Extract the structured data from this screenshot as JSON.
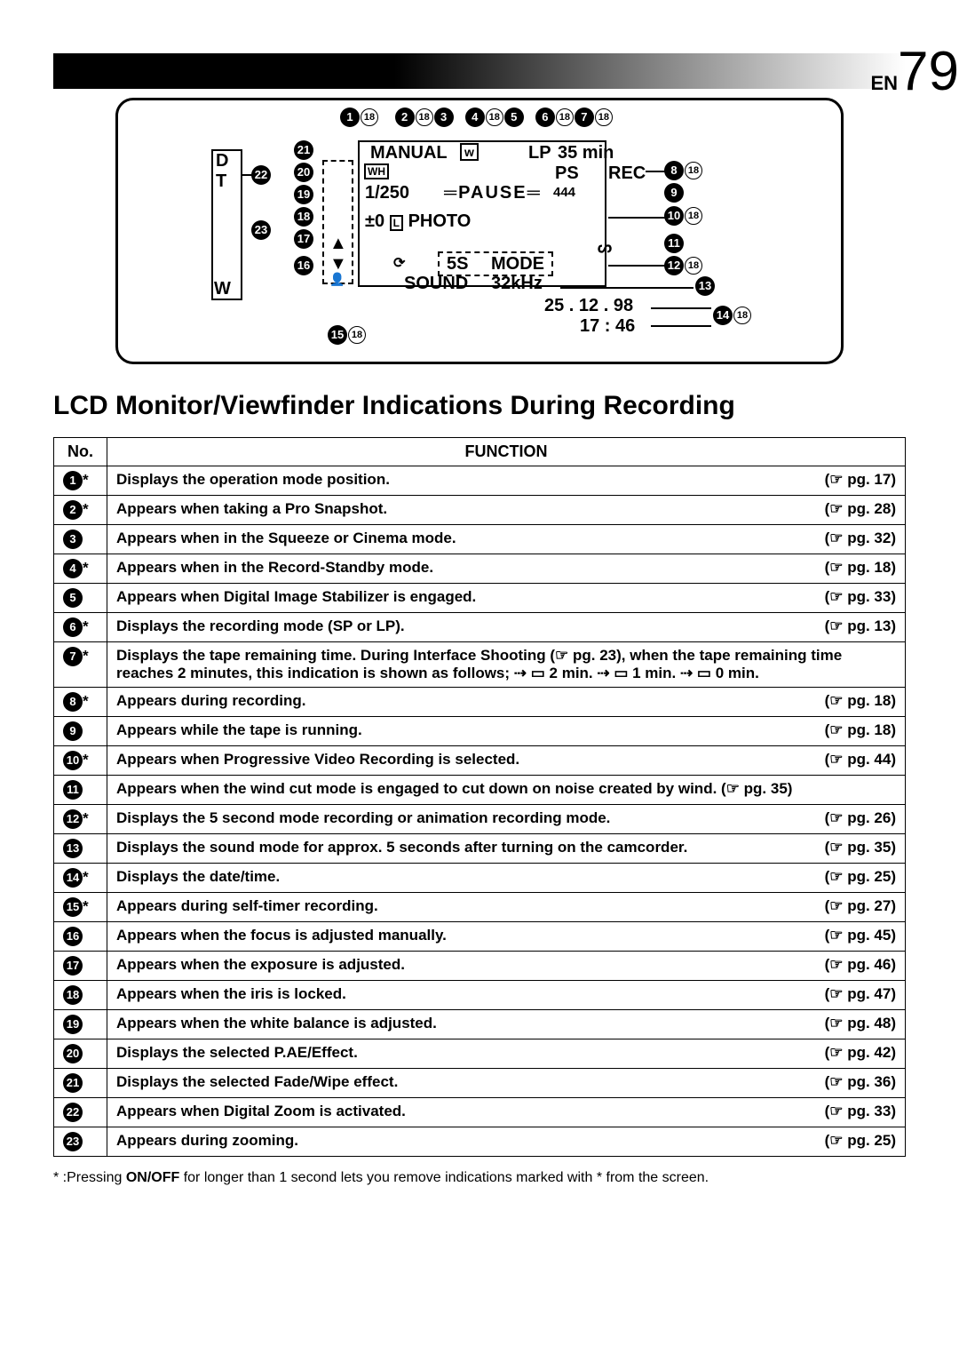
{
  "page": {
    "lang_prefix": "EN",
    "number": "79"
  },
  "lcd_diagram": {
    "labels": {
      "manual": "MANUAL",
      "lp": "LP",
      "time_remain": "35 min",
      "d": "D",
      "t": "T",
      "w": "W",
      "wh": "WH",
      "shutter": "1/250",
      "pause": "PAUSE",
      "ps": "PS",
      "rec": "REC",
      "counter": "444",
      "exp": "±0",
      "lock": "L",
      "photo": "PHOTO",
      "fives": "5S",
      "mode": "MODE",
      "sound": "SOUND",
      "khz": "32kHz",
      "date": "25 . 12 . 98",
      "clock": "17 : 46"
    },
    "top_callouts": [
      "1",
      "2",
      "3",
      "4",
      "5",
      "6",
      "7"
    ],
    "ref18": "18"
  },
  "section_title": "LCD Monitor/Viewfinder Indications During Recording",
  "table": {
    "headers": {
      "no": "No.",
      "function": "FUNCTION"
    },
    "pg_prefix": "(☞ pg. ",
    "pg_suffix": ")",
    "rows": [
      {
        "num": "1",
        "star": true,
        "desc": "Displays the operation mode position.",
        "pg": "17"
      },
      {
        "num": "2",
        "star": true,
        "desc": "Appears when taking a Pro Snapshot.",
        "pg": "28"
      },
      {
        "num": "3",
        "star": false,
        "desc": "Appears when in the Squeeze or Cinema mode.",
        "pg": "32"
      },
      {
        "num": "4",
        "star": true,
        "desc": "Appears when in the Record-Standby mode.",
        "pg": "18"
      },
      {
        "num": "5",
        "star": false,
        "desc": "Appears when Digital Image Stabilizer is engaged.",
        "pg": "33"
      },
      {
        "num": "6",
        "star": true,
        "desc": "Displays the recording mode (SP or LP).",
        "pg": "13"
      },
      {
        "num": "7",
        "star": true,
        "desc_html": "Displays the tape remaining time. During Interface Shooting (☞ pg. 23), when the tape remaining time reaches 2 minutes, this indication is shown as follows;  ⇢ ▭ 2 min. ⇢ ▭ 1 min. ⇢ ▭ 0 min.",
        "pg": null
      },
      {
        "num": "8",
        "star": true,
        "desc": "Appears during recording.",
        "pg": "18"
      },
      {
        "num": "9",
        "star": false,
        "desc": "Appears while the tape is running.",
        "pg": "18"
      },
      {
        "num": "10",
        "star": true,
        "desc": "Appears when Progressive Video Recording is selected.",
        "pg": "44"
      },
      {
        "num": "11",
        "star": false,
        "desc": "Appears when the wind cut mode is engaged to cut down on noise created by wind.",
        "pg": "35",
        "pg_inline": true
      },
      {
        "num": "12",
        "star": true,
        "desc": "Displays the 5 second mode recording or animation recording mode.",
        "pg": "26"
      },
      {
        "num": "13",
        "star": false,
        "desc": "Displays the sound mode for approx. 5 seconds after turning on the camcorder.",
        "pg": "35"
      },
      {
        "num": "14",
        "star": true,
        "desc": "Displays the date/time.",
        "pg": "25"
      },
      {
        "num": "15",
        "star": true,
        "desc": "Appears during self-timer recording.",
        "pg": "27"
      },
      {
        "num": "16",
        "star": false,
        "desc": "Appears when the focus is adjusted manually.",
        "pg": "45"
      },
      {
        "num": "17",
        "star": false,
        "desc": "Appears when the exposure is adjusted.",
        "pg": "46"
      },
      {
        "num": "18",
        "star": false,
        "desc": "Appears when the iris is locked.",
        "pg": "47"
      },
      {
        "num": "19",
        "star": false,
        "desc": "Appears when the white balance is adjusted.",
        "pg": "48"
      },
      {
        "num": "20",
        "star": false,
        "desc": "Displays the selected P.AE/Effect.",
        "pg": "42"
      },
      {
        "num": "21",
        "star": false,
        "desc": "Displays the selected Fade/Wipe effect.",
        "pg": "36"
      },
      {
        "num": "22",
        "star": false,
        "desc": "Appears when Digital Zoom is activated.",
        "pg": "33"
      },
      {
        "num": "23",
        "star": false,
        "desc": "Appears during zooming.",
        "pg": "25"
      }
    ]
  },
  "footnote": {
    "prefix": "* :Pressing ",
    "bold": "ON/OFF",
    "suffix": " for longer than 1 second  lets you remove indications marked with * from the screen."
  }
}
